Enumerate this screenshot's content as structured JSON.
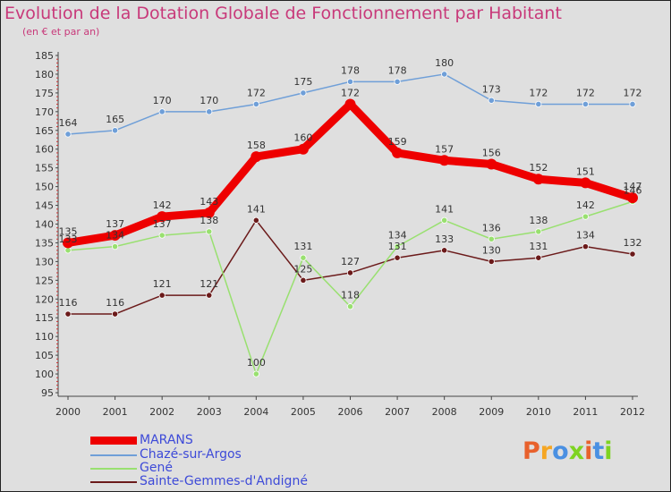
{
  "title": "Evolution de la Dotation Globale de Fonctionnement par Habitant",
  "subtitle": "(en € et par an)",
  "logo": {
    "text": "Proxiti",
    "colors": [
      "#e8612c",
      "#f5a623",
      "#4a90e2",
      "#7ed321",
      "#e8612c",
      "#4a90e2",
      "#7ed321"
    ]
  },
  "chart_data": {
    "type": "line",
    "title": "Evolution de la Dotation Globale de Fonctionnement par Habitant",
    "subtitle": "(en € et par an)",
    "xlabel": "",
    "ylabel": "",
    "ylim": [
      95,
      185
    ],
    "ytick_step": 5,
    "grid": false,
    "legend_position": "bottom-left",
    "x": [
      "2000",
      "2001",
      "2002",
      "2003",
      "2004",
      "2005",
      "2006",
      "2007",
      "2008",
      "2009",
      "2010",
      "2011",
      "2012"
    ],
    "series": [
      {
        "name": "MARANS",
        "color": "#ee0000",
        "values": [
          135,
          137,
          142,
          143,
          158,
          160,
          172,
          159,
          157,
          156,
          152,
          151,
          147
        ]
      },
      {
        "name": "Chazé-sur-Argos",
        "color": "#6f9fd8",
        "values": [
          164,
          165,
          170,
          170,
          172,
          175,
          178,
          178,
          180,
          173,
          172,
          172,
          172
        ]
      },
      {
        "name": "Gené",
        "color": "#99e070",
        "values": [
          133,
          134,
          137,
          138,
          100,
          131,
          118,
          134,
          141,
          136,
          138,
          142,
          146
        ]
      },
      {
        "name": "Sainte-Gemmes-d'Andigné",
        "color": "#6b1a1a",
        "values": [
          116,
          116,
          121,
          121,
          141,
          125,
          127,
          131,
          133,
          130,
          131,
          134,
          132
        ]
      }
    ]
  }
}
